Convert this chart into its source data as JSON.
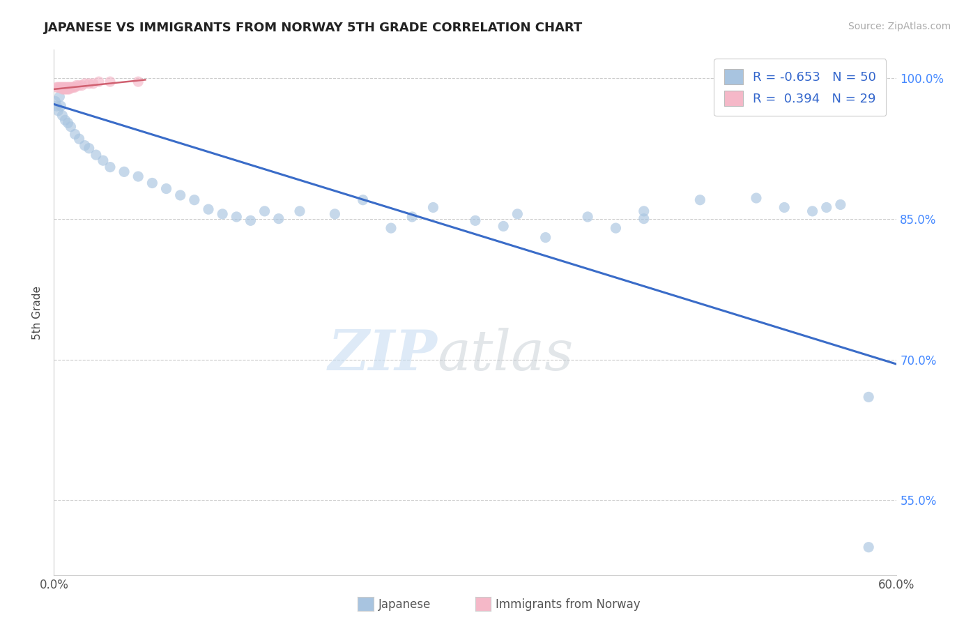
{
  "title": "JAPANESE VS IMMIGRANTS FROM NORWAY 5TH GRADE CORRELATION CHART",
  "source_text": "Source: ZipAtlas.com",
  "ylabel": "5th Grade",
  "xlim": [
    0.0,
    0.6
  ],
  "ylim": [
    0.47,
    1.03
  ],
  "ytick_vals": [
    0.55,
    0.7,
    0.85,
    1.0
  ],
  "ytick_labels": [
    "55.0%",
    "70.0%",
    "85.0%",
    "100.0%"
  ],
  "background_color": "#ffffff",
  "blue_R": -0.653,
  "blue_N": 50,
  "pink_R": 0.394,
  "pink_N": 29,
  "blue_scatter": [
    [
      0.001,
      0.975
    ],
    [
      0.002,
      0.97
    ],
    [
      0.003,
      0.965
    ],
    [
      0.004,
      0.98
    ],
    [
      0.005,
      0.97
    ],
    [
      0.006,
      0.96
    ],
    [
      0.008,
      0.955
    ],
    [
      0.01,
      0.952
    ],
    [
      0.012,
      0.948
    ],
    [
      0.015,
      0.94
    ],
    [
      0.018,
      0.935
    ],
    [
      0.022,
      0.928
    ],
    [
      0.025,
      0.925
    ],
    [
      0.03,
      0.918
    ],
    [
      0.035,
      0.912
    ],
    [
      0.04,
      0.905
    ],
    [
      0.05,
      0.9
    ],
    [
      0.06,
      0.895
    ],
    [
      0.07,
      0.888
    ],
    [
      0.08,
      0.882
    ],
    [
      0.09,
      0.875
    ],
    [
      0.1,
      0.87
    ],
    [
      0.11,
      0.86
    ],
    [
      0.12,
      0.855
    ],
    [
      0.13,
      0.852
    ],
    [
      0.14,
      0.848
    ],
    [
      0.15,
      0.858
    ],
    [
      0.16,
      0.85
    ],
    [
      0.175,
      0.858
    ],
    [
      0.2,
      0.855
    ],
    [
      0.22,
      0.87
    ],
    [
      0.24,
      0.84
    ],
    [
      0.255,
      0.852
    ],
    [
      0.27,
      0.862
    ],
    [
      0.3,
      0.848
    ],
    [
      0.32,
      0.842
    ],
    [
      0.33,
      0.855
    ],
    [
      0.35,
      0.83
    ],
    [
      0.38,
      0.852
    ],
    [
      0.4,
      0.84
    ],
    [
      0.42,
      0.858
    ],
    [
      0.46,
      0.87
    ],
    [
      0.5,
      0.872
    ],
    [
      0.52,
      0.862
    ],
    [
      0.54,
      0.858
    ],
    [
      0.55,
      0.862
    ],
    [
      0.56,
      0.865
    ],
    [
      0.58,
      0.66
    ],
    [
      0.42,
      0.85
    ],
    [
      0.58,
      0.5
    ]
  ],
  "pink_scatter": [
    [
      0.002,
      0.99
    ],
    [
      0.003,
      0.99
    ],
    [
      0.004,
      0.99
    ],
    [
      0.005,
      0.99
    ],
    [
      0.006,
      0.99
    ],
    [
      0.006,
      0.988
    ],
    [
      0.007,
      0.99
    ],
    [
      0.007,
      0.988
    ],
    [
      0.008,
      0.99
    ],
    [
      0.008,
      0.988
    ],
    [
      0.009,
      0.99
    ],
    [
      0.009,
      0.988
    ],
    [
      0.01,
      0.99
    ],
    [
      0.01,
      0.988
    ],
    [
      0.011,
      0.99
    ],
    [
      0.011,
      0.988
    ],
    [
      0.012,
      0.99
    ],
    [
      0.013,
      0.99
    ],
    [
      0.014,
      0.99
    ],
    [
      0.015,
      0.99
    ],
    [
      0.016,
      0.992
    ],
    [
      0.018,
      0.992
    ],
    [
      0.02,
      0.992
    ],
    [
      0.022,
      0.994
    ],
    [
      0.025,
      0.994
    ],
    [
      0.028,
      0.994
    ],
    [
      0.032,
      0.996
    ],
    [
      0.04,
      0.996
    ],
    [
      0.06,
      0.996
    ]
  ],
  "blue_regression": [
    0.0,
    0.6,
    0.972,
    0.695
  ],
  "pink_regression": [
    0.0,
    0.065,
    0.988,
    0.998
  ],
  "blue_color": "#a8c4e0",
  "blue_line_color": "#3a6cc8",
  "pink_color": "#f5b8c8",
  "pink_line_color": "#d06070",
  "scatter_size": 120,
  "scatter_alpha": 0.65,
  "legend_box_blue": "#a8c4e0",
  "legend_box_pink": "#f5b8c8"
}
